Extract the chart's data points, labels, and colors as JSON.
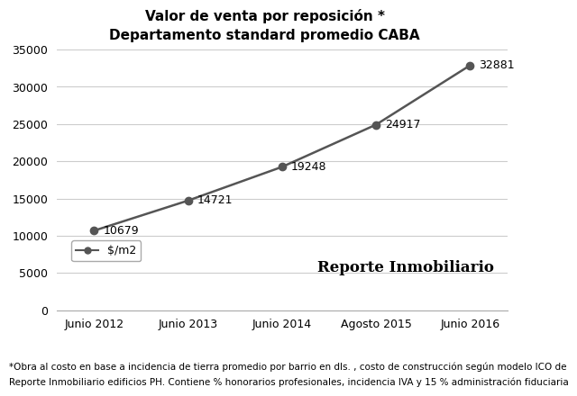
{
  "title_line1": "Valor de venta por reposición *",
  "title_line2": "Departamento standard promedio CABA",
  "x_labels": [
    "Junio 2012",
    "Junio 2013",
    "Junio 2014",
    "Agosto 2015",
    "Junio 2016"
  ],
  "y_values": [
    10679,
    14721,
    19248,
    24917,
    32881
  ],
  "y_ticks": [
    0,
    5000,
    10000,
    15000,
    20000,
    25000,
    30000,
    35000
  ],
  "ylim": [
    0,
    36000
  ],
  "line_color": "#555555",
  "marker_color": "#555555",
  "legend_label": "$/m2",
  "footnote_line1": "*Obra al costo en base a incidencia de tierra promedio por barrio en dls. , costo de construcción según modelo ICO de",
  "footnote_line2": "Reporte Inmobiliario edificios PH. Contiene % honorarios profesionales, incidencia IVA y 15 % administración fiduciaria",
  "watermark_text": "Reporte Inmobiliario",
  "background_color": "#ffffff",
  "grid_color": "#cccccc",
  "title_fontsize": 11,
  "tick_fontsize": 9,
  "annotation_fontsize": 9,
  "footnote_fontsize": 7.5,
  "legend_fontsize": 9
}
